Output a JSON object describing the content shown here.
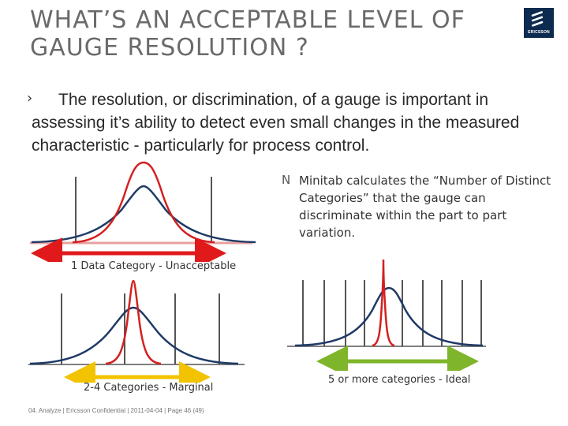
{
  "slide": {
    "title_lines": [
      "What’s an acceptable level of",
      "gauge resolution ?"
    ],
    "logo_text": "ERICSSON",
    "bullet_marker": "›",
    "body": "The resolution, or discrimination, of a gauge is important in assessing it’s ability to detect even small changes in the measured characteristic -  particularly for process control.",
    "sub_marker": "N",
    "sub_bullet": "Minitab calculates the “Number of Distinct Categories” that the gauge can discriminate within the part to part variation.",
    "captions": {
      "one_category": "1 Data Category - Unacceptable",
      "two_four": "2-4 Categories - Marginal",
      "five_more": "5 or more categories - Ideal"
    },
    "footer": "04. Analyze  |  Ericsson Confidential  |  2011-04-04  |  Page  46 (49)"
  },
  "colors": {
    "measurement_curve": "#d42020",
    "process_curve": "#1f3a66",
    "gridline": "#555555",
    "arrow_unacceptable": "#e01a1a",
    "arrow_marginal": "#f2c300",
    "arrow_ideal": "#7fb52a"
  }
}
